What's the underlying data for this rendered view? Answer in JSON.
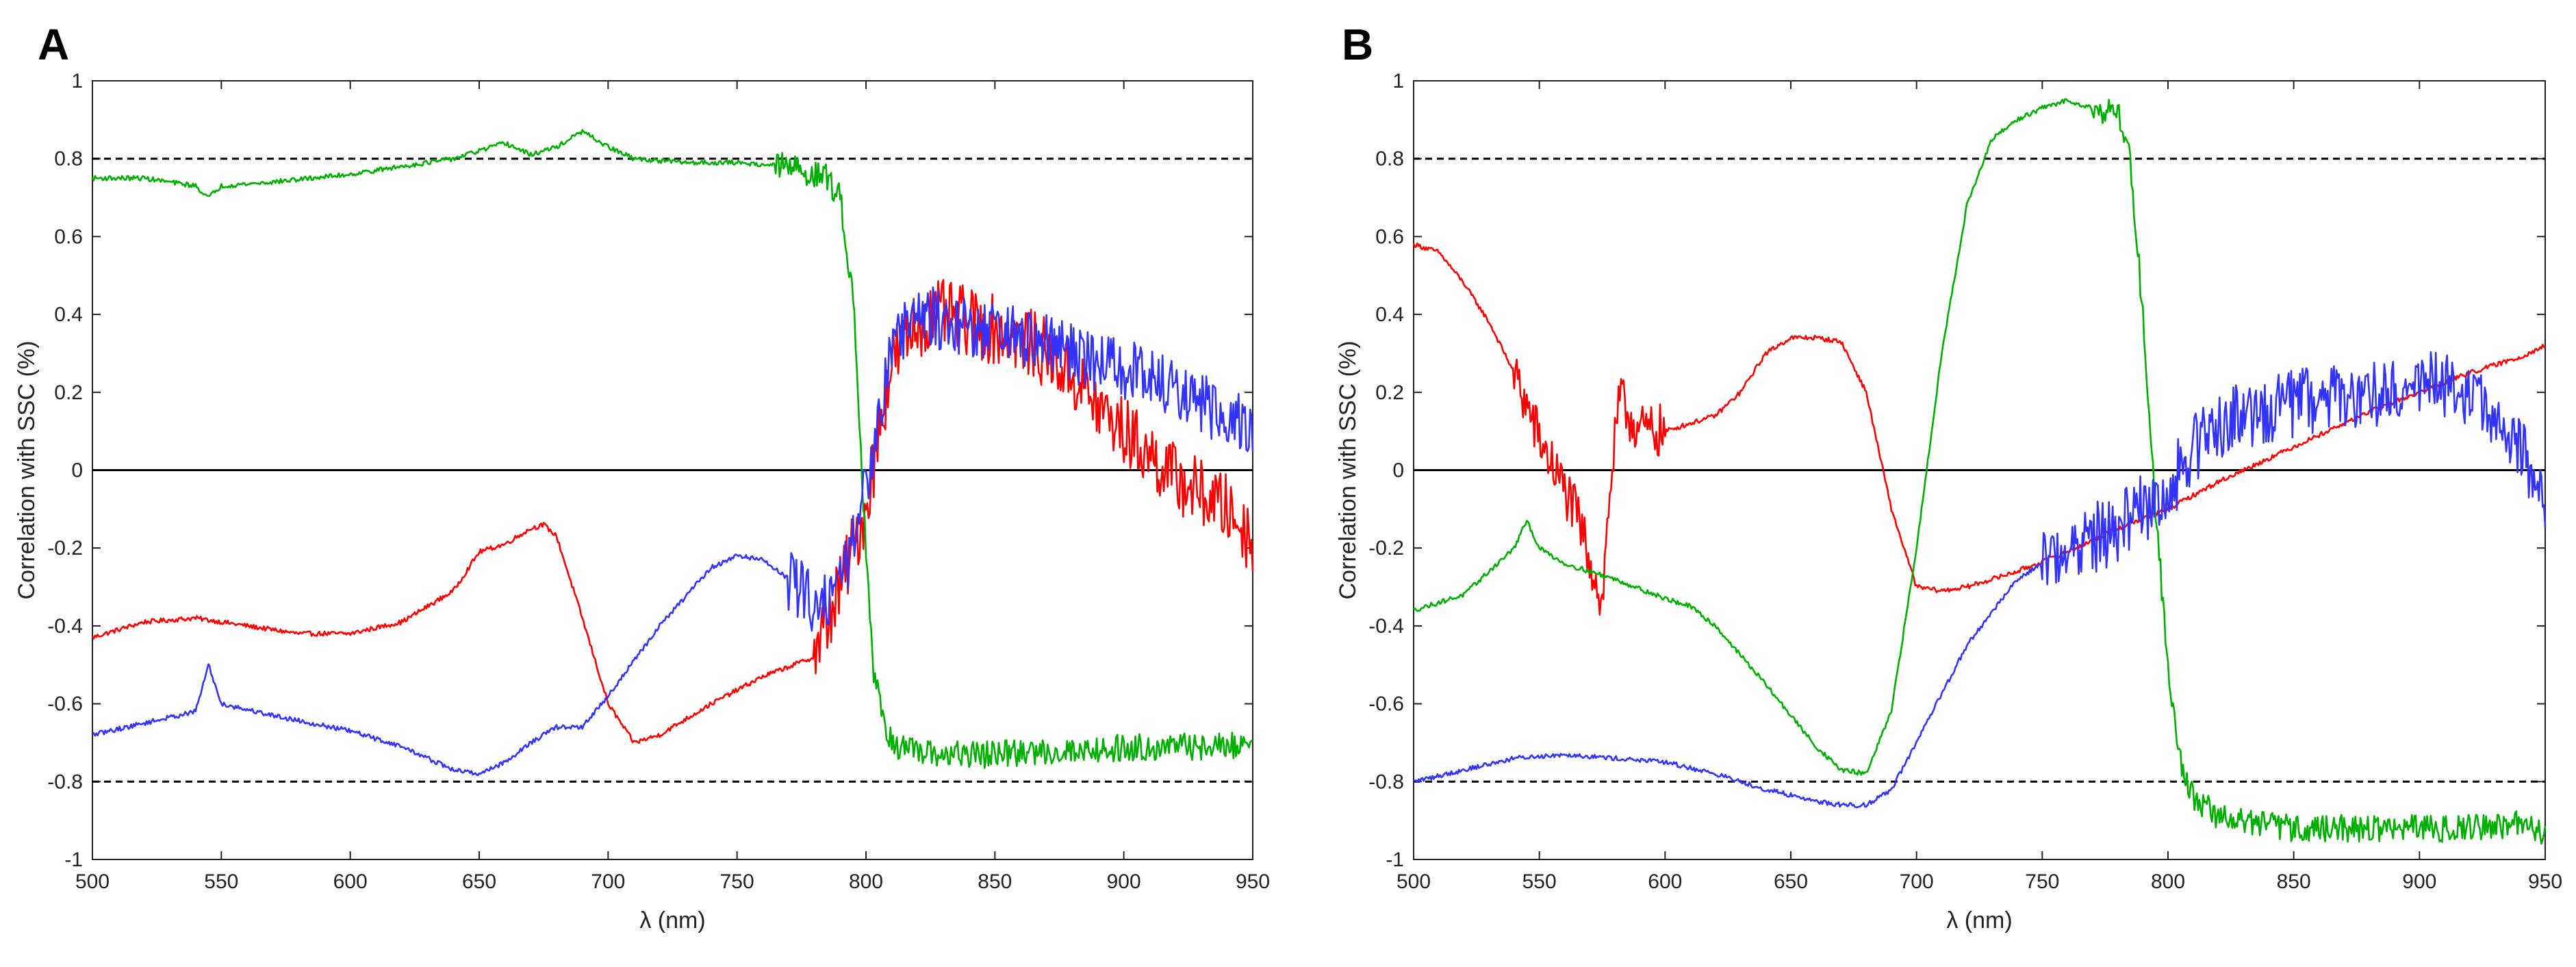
{
  "chart_data": [
    {
      "panel": "A",
      "type": "line",
      "xlabel": "λ (nm)",
      "ylabel": "Correlation with SSC (%)",
      "xlim": [
        500,
        950
      ],
      "ylim": [
        -1,
        1
      ],
      "xticks": [
        "500",
        "550",
        "600",
        "650",
        "700",
        "750",
        "800",
        "850",
        "900",
        "950"
      ],
      "yticks": [
        "1",
        "0.8",
        "0.6",
        "0.4",
        "0.2",
        "0",
        "-0.2",
        "-0.4",
        "-0.6",
        "-0.8",
        "-1"
      ],
      "reference_lines": [
        {
          "y": 0.8,
          "style": "dashed"
        },
        {
          "y": -0.8,
          "style": "dashed"
        },
        {
          "y": 0,
          "style": "solid"
        }
      ],
      "series": [
        {
          "name": "red",
          "color": "#ff0000",
          "noise_from": 780,
          "noise_amp": 0.09,
          "x": [
            500,
            520,
            540,
            560,
            580,
            600,
            620,
            640,
            650,
            660,
            670,
            675,
            680,
            690,
            700,
            710,
            720,
            740,
            760,
            780,
            790,
            800,
            805,
            810,
            820,
            830,
            840,
            850,
            860,
            870,
            880,
            890,
            900,
            910,
            920,
            930,
            940,
            950
          ],
          "y": [
            -0.43,
            -0.39,
            -0.38,
            -0.4,
            -0.42,
            -0.42,
            -0.39,
            -0.31,
            -0.21,
            -0.19,
            -0.15,
            -0.14,
            -0.17,
            -0.38,
            -0.6,
            -0.7,
            -0.68,
            -0.6,
            -0.53,
            -0.48,
            -0.3,
            -0.1,
            0.1,
            0.28,
            0.38,
            0.4,
            0.38,
            0.36,
            0.34,
            0.3,
            0.24,
            0.16,
            0.1,
            0.04,
            -0.02,
            -0.06,
            -0.1,
            -0.18
          ]
        },
        {
          "name": "green",
          "color": "#00b000",
          "noise_from": 765,
          "noise_amp": 0.035,
          "x": [
            500,
            520,
            540,
            545,
            550,
            570,
            600,
            620,
            640,
            650,
            660,
            670,
            680,
            690,
            700,
            710,
            730,
            750,
            770,
            785,
            790,
            795,
            800,
            803,
            806,
            810,
            820,
            850,
            880,
            910,
            940,
            950
          ],
          "y": [
            0.75,
            0.75,
            0.73,
            0.7,
            0.73,
            0.74,
            0.76,
            0.78,
            0.8,
            0.82,
            0.84,
            0.81,
            0.83,
            0.87,
            0.83,
            0.8,
            0.79,
            0.79,
            0.78,
            0.75,
            0.7,
            0.45,
            -0.2,
            -0.52,
            -0.62,
            -0.7,
            -0.73,
            -0.73,
            -0.72,
            -0.71,
            -0.71,
            -0.7
          ]
        },
        {
          "name": "blue",
          "color": "#3333ff",
          "noise_from": 770,
          "noise_amp": 0.08,
          "x": [
            500,
            520,
            540,
            545,
            550,
            570,
            600,
            620,
            640,
            650,
            660,
            670,
            680,
            690,
            700,
            720,
            740,
            750,
            760,
            770,
            780,
            790,
            800,
            805,
            810,
            820,
            840,
            860,
            880,
            900,
            920,
            940,
            950
          ],
          "y": [
            -0.68,
            -0.65,
            -0.62,
            -0.5,
            -0.6,
            -0.63,
            -0.67,
            -0.71,
            -0.77,
            -0.78,
            -0.75,
            -0.7,
            -0.66,
            -0.66,
            -0.58,
            -0.4,
            -0.25,
            -0.22,
            -0.23,
            -0.28,
            -0.34,
            -0.3,
            -0.05,
            0.15,
            0.33,
            0.4,
            0.37,
            0.34,
            0.3,
            0.26,
            0.2,
            0.14,
            0.11
          ]
        }
      ]
    },
    {
      "panel": "B",
      "type": "line",
      "xlabel": "λ (nm)",
      "ylabel": "Correlation with SSC (%)",
      "xlim": [
        500,
        950
      ],
      "ylim": [
        -1,
        1
      ],
      "xticks": [
        "500",
        "550",
        "600",
        "650",
        "700",
        "750",
        "800",
        "850",
        "900",
        "950"
      ],
      "yticks": [
        "1",
        "0.8",
        "0.6",
        "0.4",
        "0.2",
        "0",
        "-0.2",
        "-0.4",
        "-0.6",
        "-0.8",
        "-1"
      ],
      "reference_lines": [
        {
          "y": 0.8,
          "style": "dashed"
        },
        {
          "y": -0.8,
          "style": "dashed"
        },
        {
          "y": 0,
          "style": "solid"
        }
      ],
      "series": [
        {
          "name": "red",
          "color": "#ff0000",
          "noise_from": 540,
          "noise_to": 600,
          "noise_amp": 0.07,
          "x": [
            500,
            510,
            520,
            530,
            540,
            550,
            560,
            565,
            570,
            575,
            578,
            582,
            590,
            600,
            610,
            620,
            630,
            640,
            650,
            660,
            670,
            680,
            690,
            700,
            710,
            720,
            740,
            760,
            780,
            800,
            820,
            840,
            860,
            880,
            900,
            920,
            940,
            950
          ],
          "y": [
            0.58,
            0.56,
            0.48,
            0.38,
            0.25,
            0.08,
            -0.05,
            -0.12,
            -0.22,
            -0.35,
            -0.05,
            0.18,
            0.1,
            0.1,
            0.12,
            0.14,
            0.2,
            0.3,
            0.34,
            0.34,
            0.33,
            0.2,
            -0.1,
            -0.3,
            -0.31,
            -0.3,
            -0.26,
            -0.21,
            -0.15,
            -0.1,
            -0.03,
            0.03,
            0.09,
            0.15,
            0.2,
            0.25,
            0.29,
            0.32
          ]
        },
        {
          "name": "green",
          "color": "#00b000",
          "noise_from": 770,
          "noise_amp": 0.035,
          "x": [
            500,
            520,
            540,
            545,
            550,
            560,
            580,
            600,
            610,
            620,
            640,
            660,
            670,
            680,
            690,
            700,
            710,
            720,
            730,
            740,
            750,
            760,
            770,
            780,
            785,
            790,
            795,
            800,
            805,
            810,
            820,
            850,
            880,
            910,
            940,
            950
          ],
          "y": [
            -0.36,
            -0.32,
            -0.2,
            -0.13,
            -0.2,
            -0.24,
            -0.28,
            -0.33,
            -0.35,
            -0.4,
            -0.55,
            -0.71,
            -0.77,
            -0.78,
            -0.62,
            -0.2,
            0.3,
            0.68,
            0.85,
            0.9,
            0.93,
            0.95,
            0.93,
            0.92,
            0.8,
            0.4,
            -0.1,
            -0.5,
            -0.75,
            -0.84,
            -0.89,
            -0.92,
            -0.92,
            -0.92,
            -0.91,
            -0.93
          ]
        },
        {
          "name": "blue",
          "color": "#3333ff",
          "noise_from": 750,
          "noise_amp": 0.09,
          "x": [
            500,
            520,
            540,
            560,
            580,
            600,
            620,
            640,
            660,
            670,
            680,
            690,
            700,
            720,
            740,
            760,
            780,
            790,
            800,
            810,
            820,
            840,
            860,
            880,
            900,
            920,
            940,
            950
          ],
          "y": [
            -0.8,
            -0.77,
            -0.74,
            -0.73,
            -0.74,
            -0.75,
            -0.78,
            -0.82,
            -0.85,
            -0.86,
            -0.86,
            -0.82,
            -0.7,
            -0.45,
            -0.28,
            -0.2,
            -0.15,
            -0.1,
            -0.05,
            0.05,
            0.12,
            0.16,
            0.18,
            0.2,
            0.22,
            0.2,
            0.05,
            -0.1
          ]
        }
      ]
    }
  ]
}
